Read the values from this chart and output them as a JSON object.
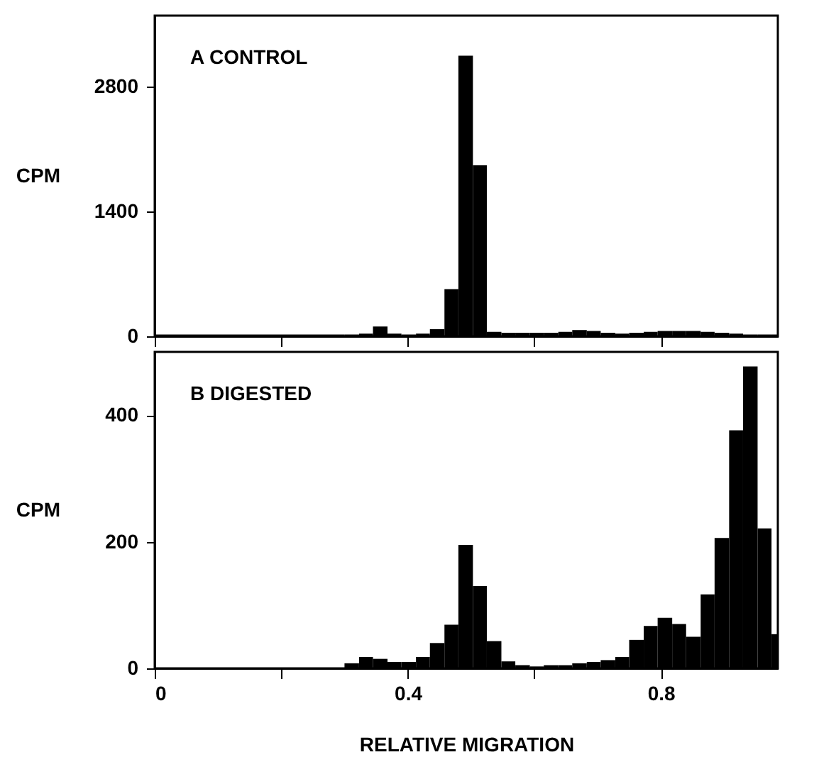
{
  "chart_data": [
    {
      "type": "histogram",
      "annotations": [
        "A  CONTROL"
      ],
      "ylabel": "CPM",
      "bins": [
        0,
        0.3,
        0.323,
        0.345,
        0.368,
        0.39,
        0.413,
        0.435,
        0.458,
        0.48,
        0.503,
        0.525,
        0.548,
        0.57,
        0.593,
        0.615,
        0.638,
        0.66,
        0.683,
        0.705,
        0.728,
        0.75,
        0.773,
        0.795,
        0.818,
        0.84,
        0.863,
        0.885,
        0.908,
        0.93,
        0.953,
        0.975,
        0.985
      ],
      "values": [
        20,
        20,
        30,
        110,
        30,
        20,
        30,
        80,
        530,
        3150,
        1920,
        50,
        40,
        40,
        40,
        40,
        50,
        70,
        60,
        40,
        30,
        40,
        50,
        60,
        60,
        60,
        50,
        40,
        30,
        20,
        20,
        20
      ],
      "color": "#000000",
      "xlim": [
        0,
        0.985
      ],
      "xticks": [
        {
          "value": 0,
          "label": null
        },
        {
          "value": 0.2,
          "label": null
        },
        {
          "value": 0.4,
          "label": null
        },
        {
          "value": 0.6,
          "label": null
        },
        {
          "value": 0.8,
          "label": null
        }
      ],
      "ylim": [
        0,
        3600
      ],
      "yticks": [
        0,
        1400,
        2800
      ],
      "tick_labels": "y"
    },
    {
      "type": "histogram",
      "annotations": [
        "B  DIGESTED"
      ],
      "ylabel": "CPM",
      "xlabel": "RELATIVE MIGRATION",
      "bins": [
        0.3,
        0.323,
        0.345,
        0.368,
        0.39,
        0.413,
        0.435,
        0.458,
        0.48,
        0.503,
        0.525,
        0.548,
        0.57,
        0.593,
        0.615,
        0.638,
        0.66,
        0.683,
        0.705,
        0.728,
        0.75,
        0.773,
        0.795,
        0.818,
        0.84,
        0.863,
        0.885,
        0.908,
        0.93,
        0.953,
        0.975,
        0.985
      ],
      "values": [
        8,
        18,
        15,
        10,
        10,
        18,
        40,
        69,
        195,
        130,
        43,
        11,
        5,
        3,
        5,
        5,
        8,
        10,
        13,
        18,
        45,
        67,
        80,
        70,
        50,
        117,
        206,
        376,
        477,
        221,
        54
      ],
      "color": "#000000",
      "xlim": [
        0,
        0.985
      ],
      "xticks": [
        0,
        {
          "value": 0.2,
          "label": null
        },
        0.4,
        {
          "value": 0.6,
          "label": null
        },
        0.8
      ],
      "ylim": [
        0,
        500
      ],
      "yticks": [
        0,
        200,
        400
      ]
    }
  ]
}
